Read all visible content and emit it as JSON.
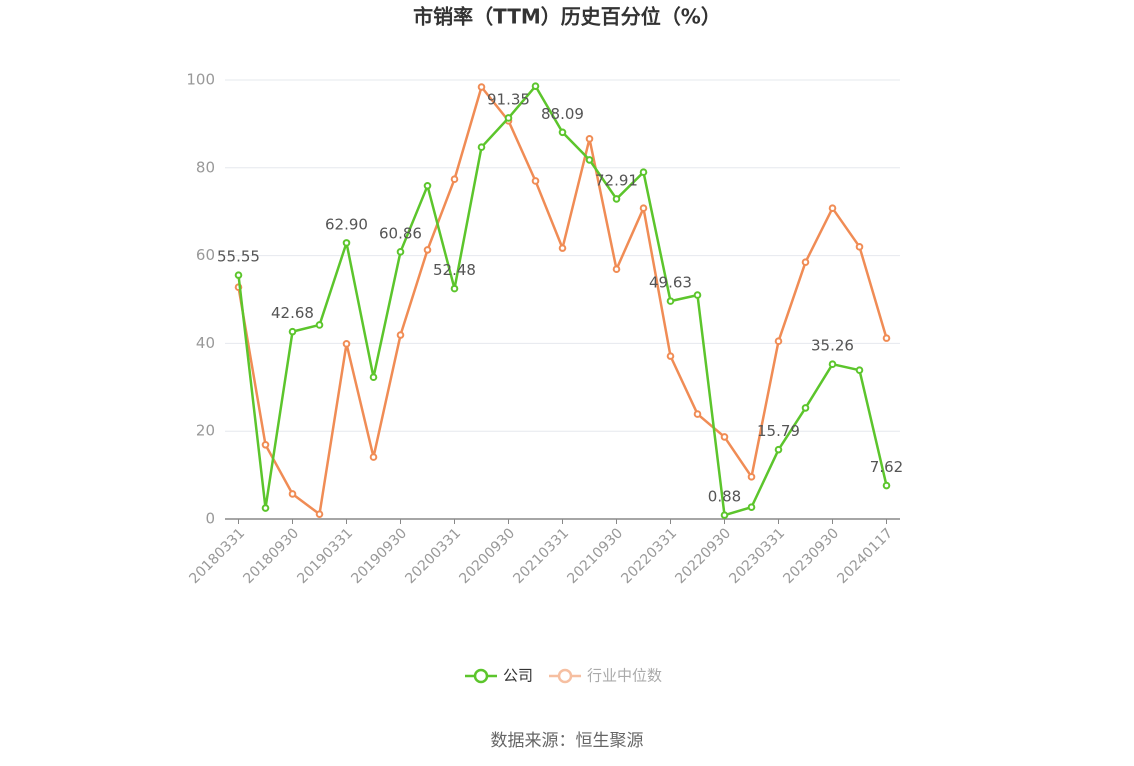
{
  "chart_data": {
    "type": "line",
    "title": "市销率（TTM）历史百分位（%）",
    "source": "数据来源：恒生聚源",
    "categories": [
      "20180331",
      null,
      "20180930",
      null,
      "20190331",
      null,
      "20190930",
      null,
      "20200331",
      null,
      "20200930",
      null,
      "20210331",
      null,
      "20210930",
      null,
      "20220331",
      null,
      "20220930",
      null,
      "20230331",
      null,
      "20230930",
      null,
      "20240117"
    ],
    "series": [
      {
        "name": "公司",
        "color": "#5cc52c",
        "values": [
          55.55,
          2.5,
          42.68,
          44.2,
          62.9,
          32.3,
          60.86,
          75.9,
          52.48,
          84.7,
          91.35,
          98.6,
          88.09,
          81.8,
          72.91,
          79.0,
          49.63,
          51.0,
          0.88,
          2.7,
          15.79,
          25.3,
          35.26,
          33.9,
          7.62
        ],
        "value_labels": [
          "55.55",
          null,
          "42.68",
          null,
          "62.90",
          null,
          "60.86",
          null,
          "52.48",
          null,
          "91.35",
          null,
          "88.09",
          null,
          "72.91",
          null,
          "49.63",
          null,
          "0.88",
          null,
          "15.79",
          null,
          "35.26",
          null,
          "7.62"
        ]
      },
      {
        "name": "行业中位数",
        "color": "#f08c55",
        "values": [
          52.8,
          16.9,
          5.7,
          1.1,
          39.9,
          14.1,
          41.9,
          61.3,
          77.4,
          98.4,
          90.7,
          77.0,
          61.7,
          86.6,
          56.9,
          70.8,
          37.1,
          23.9,
          18.7,
          9.6,
          40.5,
          58.5,
          70.8,
          62.0,
          41.2
        ]
      }
    ],
    "ylim": [
      0,
      100
    ],
    "yticks": [
      0,
      20,
      40,
      60,
      80,
      100
    ],
    "grid": true,
    "legend": "bottom"
  }
}
